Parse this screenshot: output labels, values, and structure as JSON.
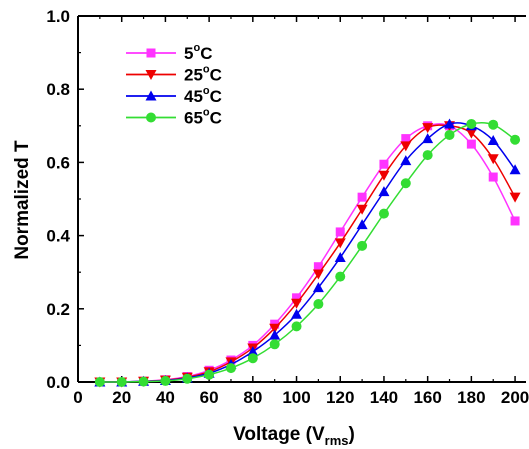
{
  "chart_data": {
    "type": "line",
    "title": "",
    "xlabel": "Voltage (V",
    "xlabel_sub": "rms",
    "xlabel_end": ")",
    "ylabel": "Normalized T",
    "xlim": [
      0,
      205
    ],
    "ylim": [
      0,
      1.0
    ],
    "x_ticks": [
      0,
      20,
      40,
      60,
      80,
      100,
      120,
      140,
      160,
      180,
      200
    ],
    "y_ticks": [
      0.0,
      0.2,
      0.4,
      0.6,
      0.8,
      1.0
    ],
    "x_tick_labels": [
      "0",
      "20",
      "40",
      "60",
      "80",
      "100",
      "120",
      "140",
      "160",
      "180",
      "200"
    ],
    "y_tick_labels": [
      "0.0",
      "0.2",
      "0.4",
      "0.6",
      "0.8",
      "1.0"
    ],
    "legend_position": "top-left",
    "x": [
      10,
      20,
      30,
      40,
      50,
      60,
      70,
      80,
      90,
      100,
      110,
      120,
      130,
      140,
      150,
      160,
      170,
      180,
      190,
      200
    ],
    "series": [
      {
        "name": "5°C",
        "label_main": "5",
        "label_sup": "o",
        "label_end": "C",
        "color": "#ff33ff",
        "marker": "square",
        "values": [
          0.0,
          0.0,
          0.002,
          0.006,
          0.015,
          0.032,
          0.06,
          0.1,
          0.158,
          0.23,
          0.315,
          0.41,
          0.505,
          0.595,
          0.665,
          0.7,
          0.7,
          0.65,
          0.56,
          0.44
        ]
      },
      {
        "name": "25°C",
        "label_main": "25",
        "label_sup": "o",
        "label_end": "C",
        "color": "#ee0000",
        "marker": "triangle-down",
        "values": [
          0.0,
          0.0,
          0.002,
          0.005,
          0.013,
          0.028,
          0.055,
          0.093,
          0.147,
          0.215,
          0.295,
          0.38,
          0.472,
          0.565,
          0.645,
          0.695,
          0.7,
          0.68,
          0.61,
          0.505
        ]
      },
      {
        "name": "45°C",
        "label_main": "45",
        "label_sup": "o",
        "label_end": "C",
        "color": "#0000ee",
        "marker": "triangle-up",
        "values": [
          0.0,
          0.0,
          0.002,
          0.004,
          0.011,
          0.024,
          0.048,
          0.083,
          0.128,
          0.185,
          0.258,
          0.34,
          0.43,
          0.52,
          0.605,
          0.665,
          0.705,
          0.7,
          0.66,
          0.58
        ]
      },
      {
        "name": "65°C",
        "label_main": "65",
        "label_sup": "o",
        "label_end": "C",
        "color": "#33dd33",
        "marker": "circle",
        "values": [
          0.0,
          0.0,
          0.001,
          0.003,
          0.009,
          0.02,
          0.038,
          0.065,
          0.103,
          0.152,
          0.213,
          0.288,
          0.372,
          0.46,
          0.543,
          0.62,
          0.675,
          0.705,
          0.703,
          0.662
        ]
      }
    ]
  }
}
